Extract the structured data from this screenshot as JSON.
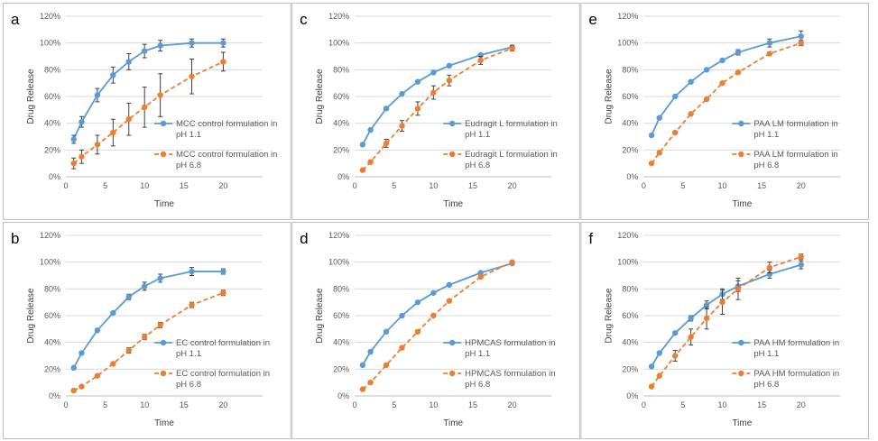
{
  "colors": {
    "series1": "#5B9BD5",
    "series2": "#ED7D31",
    "grid": "#D9D9D9",
    "axis": "#BFBFBF",
    "errbar": "#404040"
  },
  "chart_data": [
    {
      "panel": "a",
      "type": "line",
      "xlabel": "Time",
      "ylabel": "Drug Release",
      "xlim": [
        0,
        25
      ],
      "ylim": [
        0,
        120
      ],
      "xticks": [
        0,
        5,
        10,
        15,
        20
      ],
      "yticks": [
        "0%",
        "20%",
        "40%",
        "60%",
        "80%",
        "100%",
        "120%"
      ],
      "grid": "horizontal",
      "legend": "right",
      "series": [
        {
          "name": "MCC control formulation in pH 1.1",
          "style": "solid",
          "x": [
            1,
            2,
            4,
            6,
            8,
            10,
            12,
            16,
            20
          ],
          "y": [
            28,
            41,
            61,
            76,
            86,
            94,
            98,
            100,
            100
          ],
          "err": [
            3,
            4,
            5,
            6,
            6,
            5,
            4,
            3,
            3
          ]
        },
        {
          "name": "MCC control formulation in pH 6.8",
          "style": "dashed",
          "x": [
            1,
            2,
            4,
            6,
            8,
            10,
            12,
            16,
            20
          ],
          "y": [
            10,
            15,
            24,
            33,
            43,
            52,
            61,
            75,
            86
          ],
          "err": [
            4,
            5,
            7,
            10,
            12,
            15,
            16,
            13,
            7
          ]
        }
      ]
    },
    {
      "panel": "c",
      "type": "line",
      "xlabel": "Time",
      "ylabel": "Drug Release",
      "xlim": [
        0,
        25
      ],
      "ylim": [
        0,
        120
      ],
      "xticks": [
        0,
        5,
        10,
        15,
        20
      ],
      "yticks": [
        "0%",
        "20%",
        "40%",
        "60%",
        "80%",
        "100%",
        "120%"
      ],
      "grid": "horizontal",
      "legend": "right",
      "series": [
        {
          "name": "Eudragit L formulation in pH 1.1",
          "style": "solid",
          "x": [
            1,
            2,
            4,
            6,
            8,
            10,
            12,
            16,
            20
          ],
          "y": [
            24,
            35,
            51,
            62,
            71,
            78,
            83,
            91,
            97
          ],
          "err": [
            1,
            1,
            1,
            1,
            1,
            1,
            1,
            1,
            1
          ]
        },
        {
          "name": "Eudragit L formulation in pH 6.8",
          "style": "dashed",
          "x": [
            1,
            2,
            4,
            6,
            8,
            10,
            12,
            16,
            20
          ],
          "y": [
            5,
            11,
            25,
            38,
            51,
            63,
            72,
            87,
            96
          ],
          "err": [
            1,
            1,
            3,
            4,
            5,
            5,
            4,
            3,
            2
          ]
        }
      ]
    },
    {
      "panel": "e",
      "type": "line",
      "xlabel": "Time",
      "ylabel": "Drug Release",
      "xlim": [
        0,
        25
      ],
      "ylim": [
        0,
        120
      ],
      "xticks": [
        0,
        5,
        10,
        15,
        20
      ],
      "yticks": [
        "0%",
        "20%",
        "40%",
        "60%",
        "80%",
        "100%",
        "120%"
      ],
      "grid": "horizontal",
      "legend": "right",
      "series": [
        {
          "name": "PAA LM formulation in pH 1.1",
          "style": "solid",
          "x": [
            1,
            2,
            4,
            6,
            8,
            10,
            12,
            16,
            20
          ],
          "y": [
            31,
            44,
            60,
            71,
            80,
            87,
            93,
            100,
            105
          ],
          "err": [
            1,
            1,
            1,
            1,
            1,
            1,
            2,
            3,
            4
          ]
        },
        {
          "name": "PAA LM formulation in pH 6.8",
          "style": "dashed",
          "x": [
            1,
            2,
            4,
            6,
            8,
            10,
            12,
            16,
            20
          ],
          "y": [
            10,
            18,
            33,
            47,
            58,
            70,
            78,
            92,
            100
          ],
          "err": [
            1,
            1,
            1,
            1,
            1,
            1,
            1,
            1,
            2
          ]
        }
      ]
    },
    {
      "panel": "b",
      "type": "line",
      "xlabel": "Time",
      "ylabel": "Drug Release",
      "xlim": [
        0,
        25
      ],
      "ylim": [
        0,
        120
      ],
      "xticks": [
        0,
        5,
        10,
        15,
        20
      ],
      "yticks": [
        "0%",
        "20%",
        "40%",
        "60%",
        "80%",
        "100%",
        "120%"
      ],
      "grid": "horizontal",
      "legend": "right",
      "series": [
        {
          "name": "EC control formulation in pH 1.1",
          "style": "solid",
          "x": [
            1,
            2,
            4,
            6,
            8,
            10,
            12,
            16,
            20
          ],
          "y": [
            21,
            32,
            49,
            62,
            74,
            82,
            88,
            93,
            93
          ],
          "err": [
            1,
            1,
            1,
            1,
            2,
            3,
            3,
            3,
            2
          ]
        },
        {
          "name": "EC control formulation in pH 6.8",
          "style": "dashed",
          "x": [
            1,
            2,
            4,
            6,
            8,
            10,
            12,
            16,
            20
          ],
          "y": [
            4,
            7,
            15,
            24,
            34,
            44,
            53,
            68,
            77
          ],
          "err": [
            1,
            1,
            1,
            1,
            2,
            2,
            2,
            2,
            2
          ]
        }
      ]
    },
    {
      "panel": "d",
      "type": "line",
      "xlabel": "Time",
      "ylabel": "Drug Release",
      "xlim": [
        0,
        25
      ],
      "ylim": [
        0,
        120
      ],
      "xticks": [
        0,
        5,
        10,
        15,
        20
      ],
      "yticks": [
        "0%",
        "20%",
        "40%",
        "60%",
        "80%",
        "100%",
        "120%"
      ],
      "grid": "horizontal",
      "legend": "right",
      "series": [
        {
          "name": "HPMCAS formulation in pH 1.1",
          "style": "solid",
          "x": [
            1,
            2,
            4,
            6,
            8,
            10,
            12,
            16,
            20
          ],
          "y": [
            23,
            33,
            48,
            60,
            70,
            77,
            83,
            92,
            99
          ],
          "err": [
            1,
            1,
            1,
            1,
            1,
            1,
            1,
            1,
            1
          ]
        },
        {
          "name": "HPMCAS formulation in pH 6.8",
          "style": "dashed",
          "x": [
            1,
            2,
            4,
            6,
            8,
            10,
            12,
            16,
            20
          ],
          "y": [
            5,
            10,
            23,
            36,
            48,
            60,
            71,
            89,
            100
          ],
          "err": [
            1,
            1,
            1,
            1,
            1,
            1,
            1,
            1,
            1
          ]
        }
      ]
    },
    {
      "panel": "f",
      "type": "line",
      "xlabel": "Time",
      "ylabel": "Drug Release",
      "xlim": [
        0,
        25
      ],
      "ylim": [
        0,
        120
      ],
      "xticks": [
        0,
        5,
        10,
        15,
        20
      ],
      "yticks": [
        "0%",
        "20%",
        "40%",
        "60%",
        "80%",
        "100%",
        "120%"
      ],
      "grid": "horizontal",
      "legend": "right",
      "series": [
        {
          "name": "PAA HM formulation in pH 1.1",
          "style": "solid",
          "x": [
            1,
            2,
            4,
            6,
            8,
            10,
            12,
            16,
            20
          ],
          "y": [
            22,
            32,
            47,
            58,
            68,
            76,
            82,
            91,
            98
          ],
          "err": [
            1,
            1,
            1,
            2,
            3,
            4,
            4,
            3,
            3
          ]
        },
        {
          "name": "PAA HM formulation in pH 6.8",
          "style": "dashed",
          "x": [
            1,
            2,
            4,
            6,
            8,
            10,
            12,
            16,
            20
          ],
          "y": [
            7,
            15,
            30,
            44,
            58,
            70,
            80,
            96,
            104
          ],
          "err": [
            1,
            1,
            4,
            6,
            8,
            9,
            8,
            4,
            2
          ]
        }
      ]
    }
  ]
}
